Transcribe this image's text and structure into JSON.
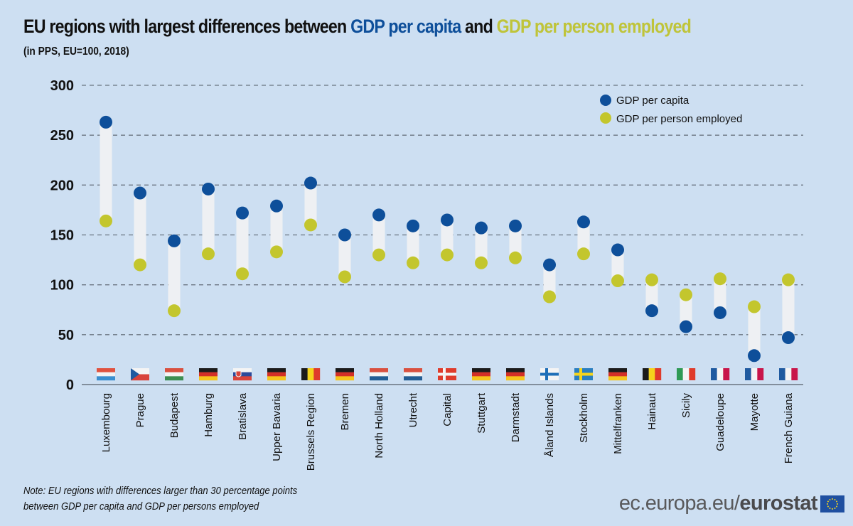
{
  "title": {
    "part1": "EU regions with largest differences between ",
    "part2": "GDP per capita",
    "part3": " and ",
    "part4": "GDP per person employed"
  },
  "subtitle": "(in PPS, EU=100, 2018)",
  "colors": {
    "background": "#cddff2",
    "gdp_per_capita": "#0e4f9a",
    "gdp_per_person_employed": "#c3c62d",
    "range_bar": "#eef0f3",
    "gridline": "#6a7480",
    "axis": "#6a7480"
  },
  "chart_data": {
    "type": "dumbbell",
    "title": "EU regions with largest differences between GDP per capita and GDP per person employed",
    "subtitle": "(in PPS, EU=100, 2018)",
    "xlabel": "",
    "ylabel": "",
    "ylim": [
      0,
      300
    ],
    "yticks": [
      0,
      50,
      100,
      150,
      200,
      250,
      300
    ],
    "grid": true,
    "legend_position": "top-right",
    "categories": [
      "Luxembourg",
      "Prague",
      "Budapest",
      "Hamburg",
      "Bratislava",
      "Upper Bavaria",
      "Brussels Region",
      "Bremen",
      "North Holland",
      "Utrecht",
      "Capital",
      "Stuttgart",
      "Darmstadt",
      "Åland Islands",
      "Stockholm",
      "Mittelfranken",
      "Hainaut",
      "Sicily",
      "Guadeloupe",
      "Mayotte",
      "French Guiana"
    ],
    "flags": [
      "LU",
      "CZ",
      "HU",
      "DE",
      "SK",
      "DE",
      "BE",
      "DE",
      "NL",
      "NL",
      "DK",
      "DE",
      "DE",
      "FI",
      "SE",
      "DE",
      "BE",
      "IT",
      "FR",
      "FR",
      "FR"
    ],
    "series": [
      {
        "name": "GDP per capita",
        "values": [
          263,
          192,
          144,
          196,
          172,
          179,
          202,
          150,
          170,
          159,
          165,
          157,
          159,
          120,
          163,
          135,
          74,
          58,
          72,
          29,
          47
        ]
      },
      {
        "name": "GDP per person employed",
        "values": [
          164,
          120,
          74,
          131,
          111,
          133,
          160,
          108,
          130,
          122,
          130,
          122,
          127,
          88,
          131,
          104,
          105,
          90,
          106,
          78,
          105
        ]
      }
    ]
  },
  "note": {
    "line1": "Note: EU regions with differences larger than 30 percentage points",
    "line2": "between GDP per capita and GDP per persons employed"
  },
  "logo": {
    "prefix": "ec.europa.eu/",
    "brand": "eurostat"
  }
}
